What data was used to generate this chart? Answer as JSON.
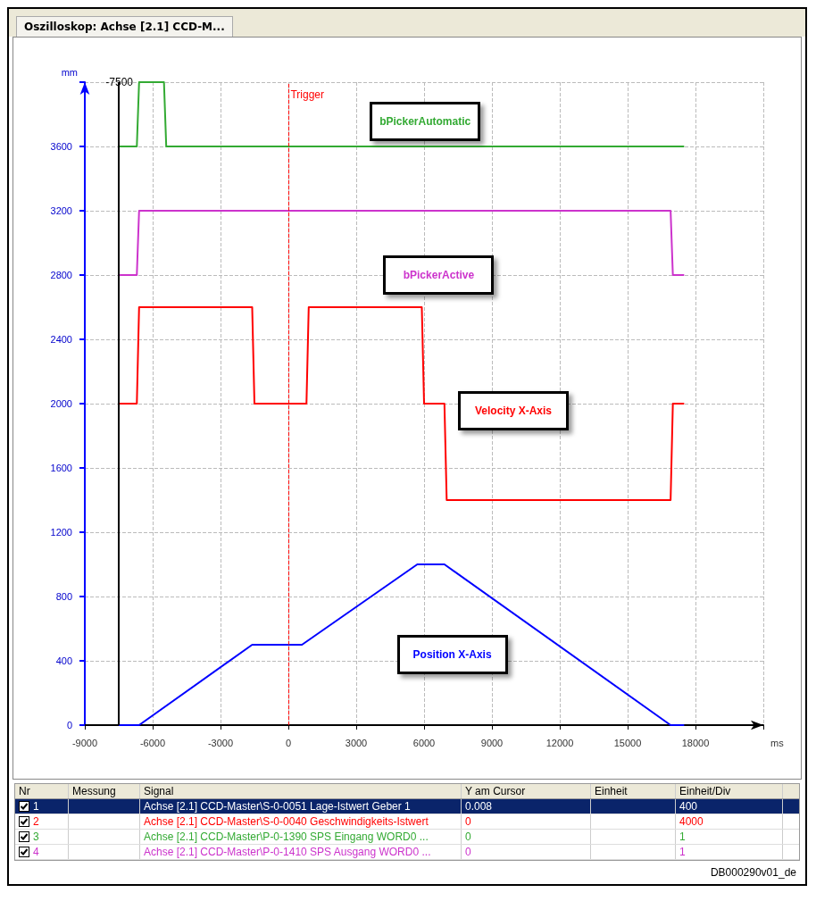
{
  "chart_data": {
    "type": "line",
    "title": "Oszilloskop: Achse [2.1] CCD-M...",
    "xlabel": "ms",
    "ylabel": "mm",
    "xlim": [
      -9000,
      21000
    ],
    "xticks": [
      -9000,
      -6000,
      -3000,
      0,
      3000,
      6000,
      9000,
      12000,
      15000,
      18000,
      {
        "value": 21000,
        "label": null
      }
    ],
    "ylim": [
      0,
      4000
    ],
    "yticks": [
      0,
      400,
      800,
      1200,
      1600,
      2000,
      2400,
      2800,
      3200,
      3600,
      {
        "value": 4000,
        "label": null
      }
    ],
    "grid": true,
    "legend": false,
    "marker": "none",
    "line_style": "solid",
    "series": [
      {
        "name": "Position X-Axis",
        "color": "#0000ff",
        "x": [
          -7500,
          -6600,
          -1600,
          600,
          5700,
          6900,
          16900,
          17500
        ],
        "values": [
          0,
          0,
          500,
          500,
          1000,
          1000,
          0,
          0
        ]
      },
      {
        "name": "Velocity X-Axis",
        "color": "#ff0000",
        "x": [
          -7500,
          -6700,
          -6600,
          -1600,
          -1500,
          800,
          900,
          5900,
          6000,
          6900,
          7000,
          16900,
          17000,
          17500
        ],
        "values": [
          2000,
          2000,
          2600,
          2600,
          2000,
          2000,
          2600,
          2600,
          2000,
          2000,
          1400,
          1400,
          2000,
          2000
        ]
      },
      {
        "name": "bPickerAutomatic",
        "color": "#33aa33",
        "x": [
          -7500,
          -6700,
          -6600,
          -5500,
          -5400,
          17500
        ],
        "values": [
          3600,
          3600,
          4000,
          4000,
          3600,
          3600
        ]
      },
      {
        "name": "bPickerActive",
        "color": "#cc33cc",
        "x": [
          -7500,
          -6700,
          -6600,
          16900,
          17000,
          17500
        ],
        "values": [
          2800,
          2800,
          3200,
          3200,
          2800,
          2800
        ]
      }
    ],
    "ref_lines": [
      {
        "axis": "x",
        "value": -7500,
        "label": "-7500",
        "color": "#000000",
        "line_style": "solid"
      },
      {
        "axis": "x",
        "value": 0,
        "label": "Trigger",
        "color": "#ff0000",
        "line_style": "dashed"
      }
    ],
    "annotations": [
      "Nr",
      "Messung",
      "Signal",
      "Y am Cursor",
      "Einheit",
      "Einheit/Div",
      "1",
      "Achse [2.1] CCD-Master\\S-0-0051 Lage-Istwert Geber 1",
      "0.008",
      "400",
      "2",
      "Achse [2.1] CCD-Master\\S-0-0040 Geschwindigkeits-Istwert",
      "0",
      "4000",
      "3",
      "Achse [2.1] CCD-Master\\P-0-1390 SPS Eingang WORD0 ...",
      "0",
      "1",
      "4",
      "Achse [2.1] CCD-Master\\P-0-1410 SPS Ausgang WORD0 ...",
      "0",
      "1",
      "DB000290v01_de"
    ]
  }
}
